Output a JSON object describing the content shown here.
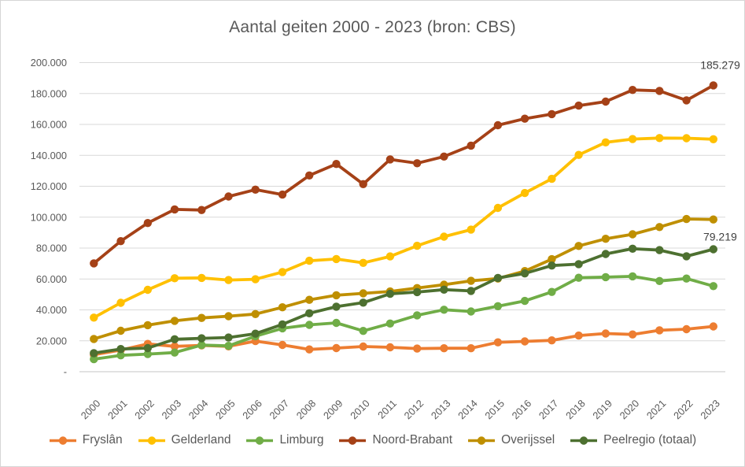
{
  "colors": {
    "text": "#595959",
    "grid": "#d9d9d9",
    "axis": "#c6c6c6",
    "background": "#ffffff"
  },
  "chart_data": {
    "type": "line",
    "title": "Aantal geiten 2000 - 2023 (bron: CBS)",
    "xlabel": "",
    "ylabel": "",
    "x_labels": [
      "2000",
      "2001",
      "2002",
      "2003",
      "2004",
      "2005",
      "2006",
      "2007",
      "2008",
      "2009",
      "2010",
      "2011",
      "2012",
      "2013",
      "2014",
      "2015",
      "2016",
      "2017",
      "2018",
      "2019",
      "2020",
      "2021",
      "2022",
      "2023"
    ],
    "ylim": [
      0,
      200000
    ],
    "ytick_interval": 20000,
    "ytick_labels_bottom_to_top": [
      "-",
      "20.000",
      "40.000",
      "60.000",
      "80.000",
      "100.000",
      "120.000",
      "140.000",
      "160.000",
      "180.000",
      "200.000"
    ],
    "grid": true,
    "legend_position": "bottom",
    "series": [
      {
        "name": "Fryslân",
        "color": "#ED7D31",
        "values": [
          11000,
          14000,
          18000,
          16400,
          17000,
          16400,
          19800,
          17300,
          14400,
          15300,
          16300,
          15800,
          15000,
          15200,
          15200,
          19000,
          19600,
          20300,
          23400,
          24700,
          24100,
          26800,
          27500,
          29300
        ]
      },
      {
        "name": "Gelderland",
        "color": "#FFC000",
        "values": [
          35000,
          44600,
          53000,
          60500,
          60700,
          59300,
          59800,
          64500,
          71800,
          72900,
          70400,
          74600,
          81500,
          87400,
          91900,
          106000,
          115600,
          124800,
          140300,
          148400,
          150500,
          151200,
          151100,
          150400
        ]
      },
      {
        "name": "Limburg",
        "color": "#70AD47",
        "values": [
          8100,
          10600,
          11400,
          12400,
          17200,
          16700,
          23000,
          28100,
          30300,
          31600,
          26400,
          31200,
          36500,
          40100,
          39000,
          42400,
          45800,
          51600,
          60800,
          61200,
          61700,
          58700,
          60300,
          55400
        ]
      },
      {
        "name": "Noord-Brabant",
        "color": "#A54117",
        "values": [
          70100,
          84500,
          96200,
          105000,
          104600,
          113400,
          117800,
          114600,
          127000,
          134400,
          121400,
          137400,
          134900,
          139200,
          146300,
          159500,
          163700,
          166700,
          172200,
          174800,
          182300,
          181700,
          175600,
          185279
        ]
      },
      {
        "name": "Overijssel",
        "color": "#BF8F00",
        "values": [
          21200,
          26500,
          30100,
          32900,
          34800,
          35900,
          37300,
          41700,
          46500,
          49500,
          50700,
          51900,
          54100,
          56300,
          58800,
          60300,
          65100,
          72800,
          81400,
          86000,
          88900,
          93600,
          98800,
          98500
        ]
      },
      {
        "name": "Peelregio (totaal)",
        "color": "#4D7030",
        "values": [
          12000,
          14700,
          15300,
          21000,
          21600,
          22100,
          24600,
          30600,
          37800,
          42100,
          44700,
          50400,
          51500,
          53100,
          52300,
          60700,
          63600,
          68700,
          69600,
          76200,
          79600,
          78700,
          74700,
          79219
        ]
      }
    ],
    "annotations": [
      {
        "series": "Noord-Brabant",
        "x_label": "2023",
        "text": "185.279"
      },
      {
        "series": "Peelregio (totaal)",
        "x_label": "2023",
        "text": "79.219"
      }
    ]
  }
}
